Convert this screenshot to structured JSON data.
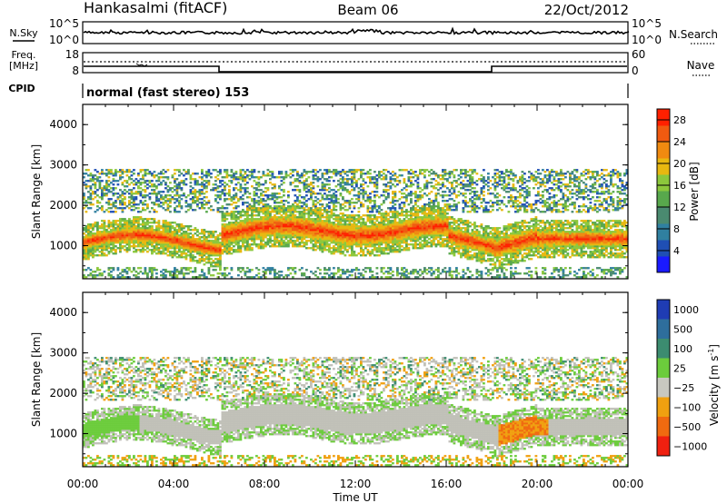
{
  "header": {
    "station": "Hankasalmi (fitACF)",
    "beam": "Beam 06",
    "date": "22/Oct/2012"
  },
  "nsky_panel": {
    "left_label": "N.Sky",
    "ticks_left": [
      "10^5",
      "10^0"
    ],
    "ticks_right": [
      "10^5",
      "10^0"
    ],
    "right_label": "N.Search",
    "right_legend_line": "dotted"
  },
  "freq_panel": {
    "label_freq": "Freq.",
    "label_unit": "[MHz]",
    "ticks_left": [
      "18",
      "8"
    ],
    "ticks_right": [
      "60",
      "0"
    ],
    "right_label": "Nave",
    "right_legend_line": "dotted"
  },
  "cpid_panel": {
    "label": "CPID",
    "mode_text": "normal (fast stereo) 153"
  },
  "chart_data": [
    {
      "type": "heatmap",
      "name_printed": "Power [dB]",
      "xlabel": "Time UT",
      "ylabel": "Slant Range [km]",
      "x_ticks": [
        "00:00",
        "04:00",
        "08:00",
        "12:00",
        "16:00",
        "20:00",
        "00:00"
      ],
      "x_range_hours": [
        0,
        24
      ],
      "ylim": [
        180,
        4500
      ],
      "y_ticks": [
        1000,
        2000,
        3000,
        4000
      ],
      "colorbar": {
        "label": "Power [dB]",
        "ticks": [
          4,
          8,
          12,
          16,
          20,
          24,
          28
        ],
        "range": [
          0,
          30
        ],
        "colors": [
          "#1a1aff",
          "#1f4fb4",
          "#3080a0",
          "#4a8a70",
          "#58a84c",
          "#8cc83c",
          "#e8b810",
          "#f08a10",
          "#f05a10",
          "#ff2000"
        ]
      },
      "grid": false
    },
    {
      "type": "heatmap",
      "name_printed": "Velocity [m s^-1]",
      "xlabel": "Time UT",
      "ylabel": "Slant Range [km]",
      "x_ticks": [
        "00:00",
        "04:00",
        "08:00",
        "12:00",
        "16:00",
        "20:00",
        "00:00"
      ],
      "x_range_hours": [
        0,
        24
      ],
      "ylim": [
        180,
        4500
      ],
      "y_ticks": [
        1000,
        2000,
        3000,
        4000
      ],
      "colorbar": {
        "label": "Velocity [m s",
        "label_sup": "-1",
        "label_end": "]",
        "ticks": [
          "1000",
          "500",
          "100",
          "25",
          "−25",
          "−100",
          "−500",
          "−1000"
        ],
        "colors": [
          "#1f3cb4",
          "#2e6e9c",
          "#3c8c70",
          "#6ccc3c",
          "#c8c8c0",
          "#f0a010",
          "#f06a10",
          "#f02010"
        ]
      },
      "grid": false
    }
  ],
  "colors": {
    "ground_scatter": "#c0c0b8",
    "axis": "#000000"
  }
}
